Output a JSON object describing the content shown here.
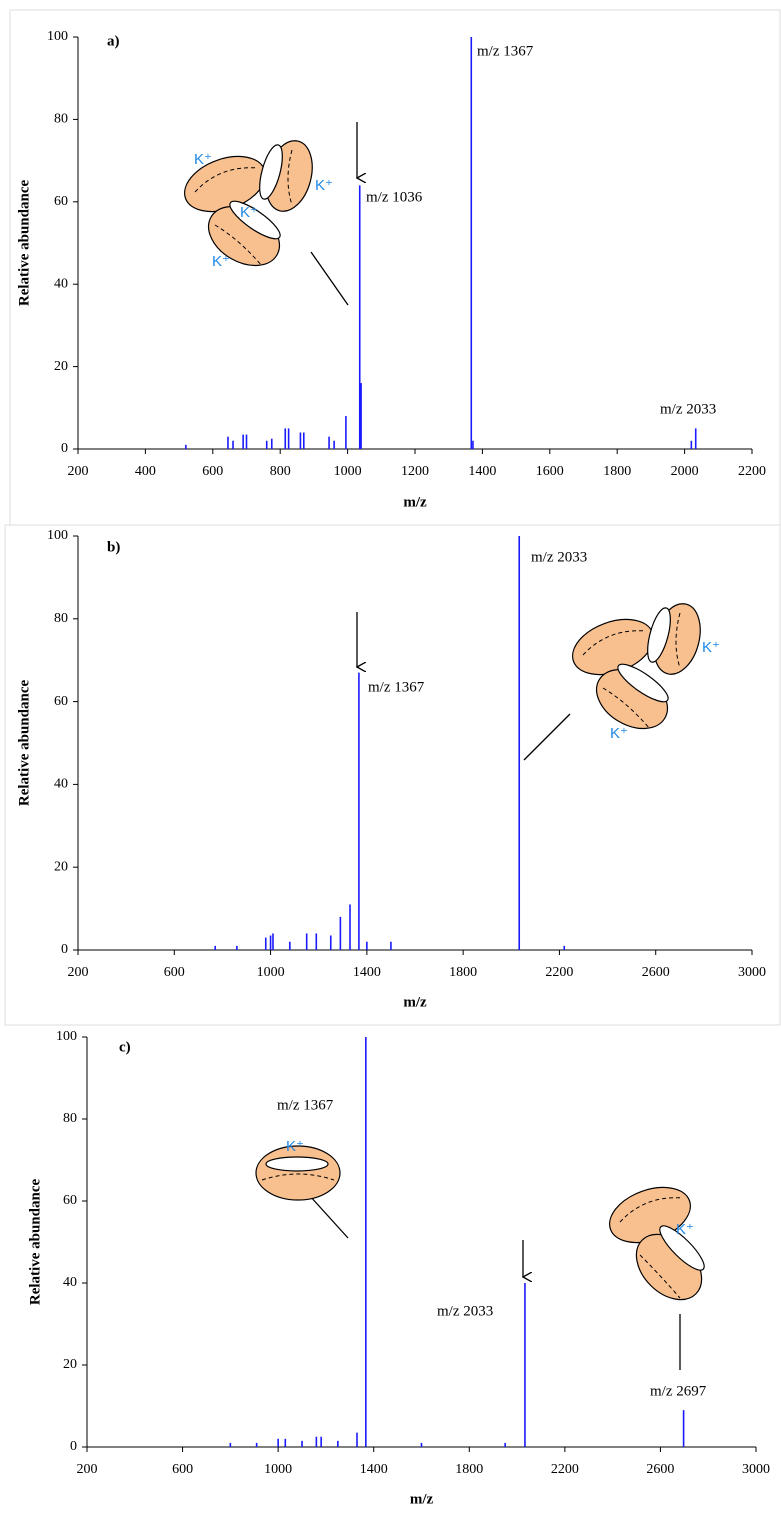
{
  "chart_data": [
    {
      "type": "bar",
      "label": "a)",
      "xlabel": "m/z",
      "ylabel": "Relative abundance",
      "color": "#1a1aff",
      "x": [
        520,
        645,
        660,
        690,
        700,
        760,
        775,
        815,
        825,
        860,
        870,
        945,
        960,
        995,
        1036,
        1040,
        1367,
        1372,
        2020,
        2033
      ],
      "values": [
        1,
        3,
        2,
        3.5,
        3.5,
        2,
        2.5,
        5,
        5,
        4,
        4,
        3,
        2,
        8,
        64,
        16,
        100,
        2,
        2,
        5
      ],
      "xlim": [
        200,
        2200
      ],
      "xticks": [
        200,
        400,
        600,
        800,
        1000,
        1200,
        1400,
        1600,
        1800,
        2000,
        2200
      ],
      "ylim": [
        0,
        100
      ],
      "yticks": [
        0,
        20,
        40,
        60,
        80,
        100
      ],
      "annotations": [
        "m/z 1367",
        "m/z 1036",
        "m/z 2033"
      ],
      "ion_labels": [
        "K⁺",
        "K⁺",
        "K⁺",
        "K⁺"
      ]
    },
    {
      "type": "bar",
      "label": "b)",
      "xlabel": "m/z",
      "ylabel": "Relative abundance",
      "color": "#1a1aff",
      "x": [
        770,
        860,
        980,
        1000,
        1010,
        1080,
        1150,
        1190,
        1250,
        1290,
        1330,
        1367,
        1400,
        1500,
        2033,
        2220
      ],
      "values": [
        1,
        1,
        3,
        3.5,
        4,
        2,
        4,
        4,
        3.5,
        8,
        11,
        67,
        2,
        2,
        100,
        1
      ],
      "xlim": [
        200,
        3000
      ],
      "xticks": [
        200,
        600,
        1000,
        1400,
        1800,
        2200,
        2600,
        3000
      ],
      "ylim": [
        0,
        100
      ],
      "yticks": [
        0,
        20,
        40,
        60,
        80,
        100
      ],
      "annotations": [
        "m/z 1367",
        "m/z 2033"
      ],
      "ion_labels": [
        "K⁺",
        "K⁺"
      ]
    },
    {
      "type": "bar",
      "label": "c)",
      "xlabel": "m/z",
      "ylabel": "Relative abundance",
      "color": "#1a1aff",
      "x": [
        800,
        910,
        1000,
        1030,
        1100,
        1160,
        1180,
        1250,
        1330,
        1367,
        1600,
        1950,
        2033,
        2697
      ],
      "values": [
        1,
        1,
        2,
        2,
        1.5,
        2.5,
        2.5,
        1.5,
        3.5,
        100,
        1,
        1,
        40,
        9
      ],
      "xlim": [
        200,
        3000
      ],
      "xticks": [
        200,
        600,
        1000,
        1400,
        1800,
        2200,
        2600,
        3000
      ],
      "ylim": [
        0,
        100
      ],
      "yticks": [
        0,
        20,
        40,
        60,
        80,
        100
      ],
      "annotations": [
        "m/z 1367",
        "m/z 2033",
        "m/z 2697"
      ],
      "ion_labels": [
        "K⁺",
        "K⁺"
      ]
    }
  ]
}
